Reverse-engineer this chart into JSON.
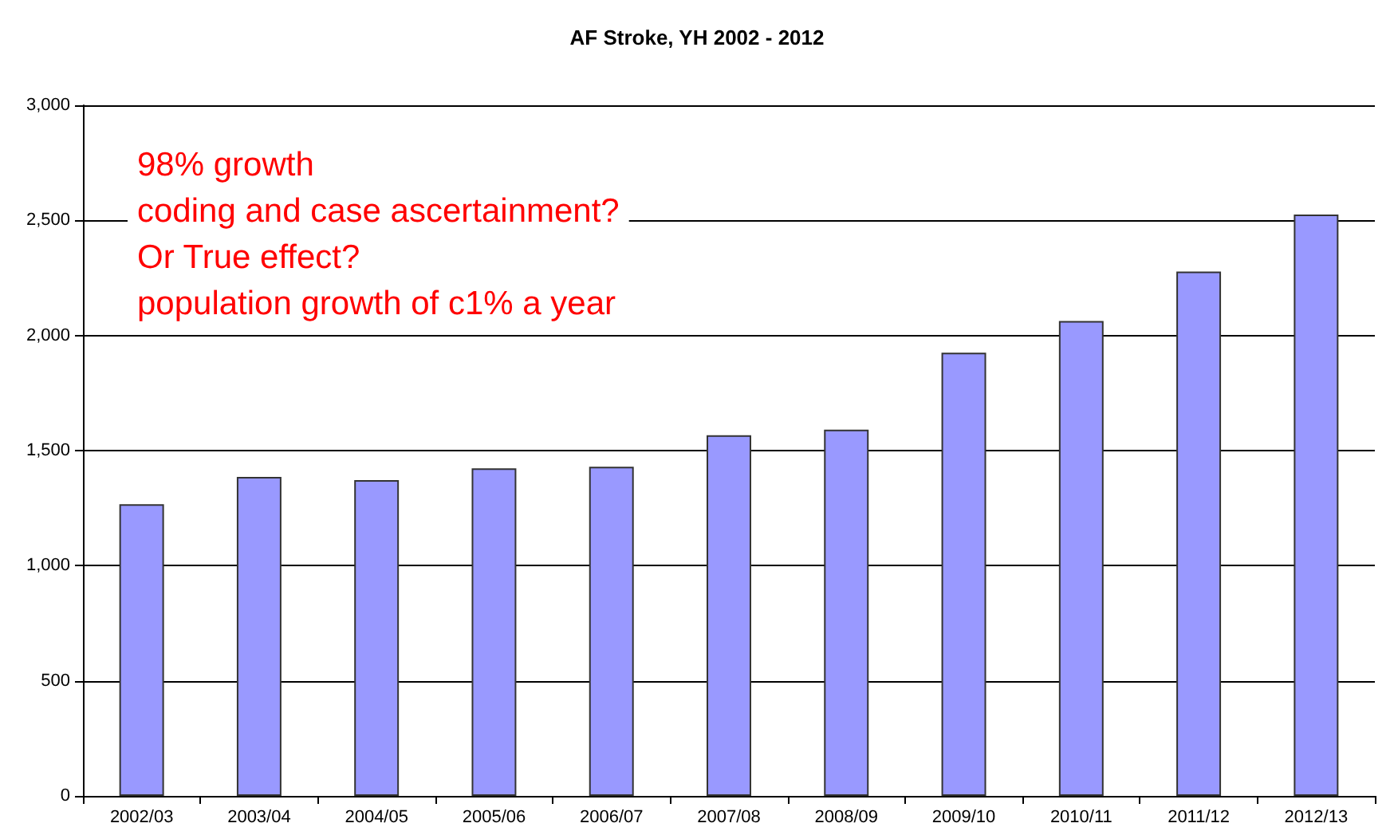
{
  "chart_data": {
    "type": "bar",
    "title": "AF Stroke, YH 2002 - 2012",
    "categories": [
      "2002/03",
      "2003/04",
      "2004/05",
      "2005/06",
      "2006/07",
      "2007/08",
      "2008/09",
      "2009/10",
      "2010/11",
      "2011/12",
      "2012/13"
    ],
    "values": [
      1267,
      1386,
      1372,
      1423,
      1430,
      1567,
      1591,
      1925,
      2063,
      2278,
      2525
    ],
    "color": "#9999ff",
    "ylim": [
      0,
      3000
    ],
    "yticks": [
      {
        "value": 0,
        "label": "0"
      },
      {
        "value": 500,
        "label": "500"
      },
      {
        "value": 1000,
        "label": "1,000"
      },
      {
        "value": 1500,
        "label": "1,500"
      },
      {
        "value": 2000,
        "label": "2,000"
      },
      {
        "value": 2500,
        "label": "2,500"
      },
      {
        "value": 3000,
        "label": "3,000"
      }
    ],
    "grid": "y",
    "annotations": [
      "98% growth\ncoding and case ascertainment?\nOr True effect?\npopulation growth of c1% a year"
    ]
  }
}
